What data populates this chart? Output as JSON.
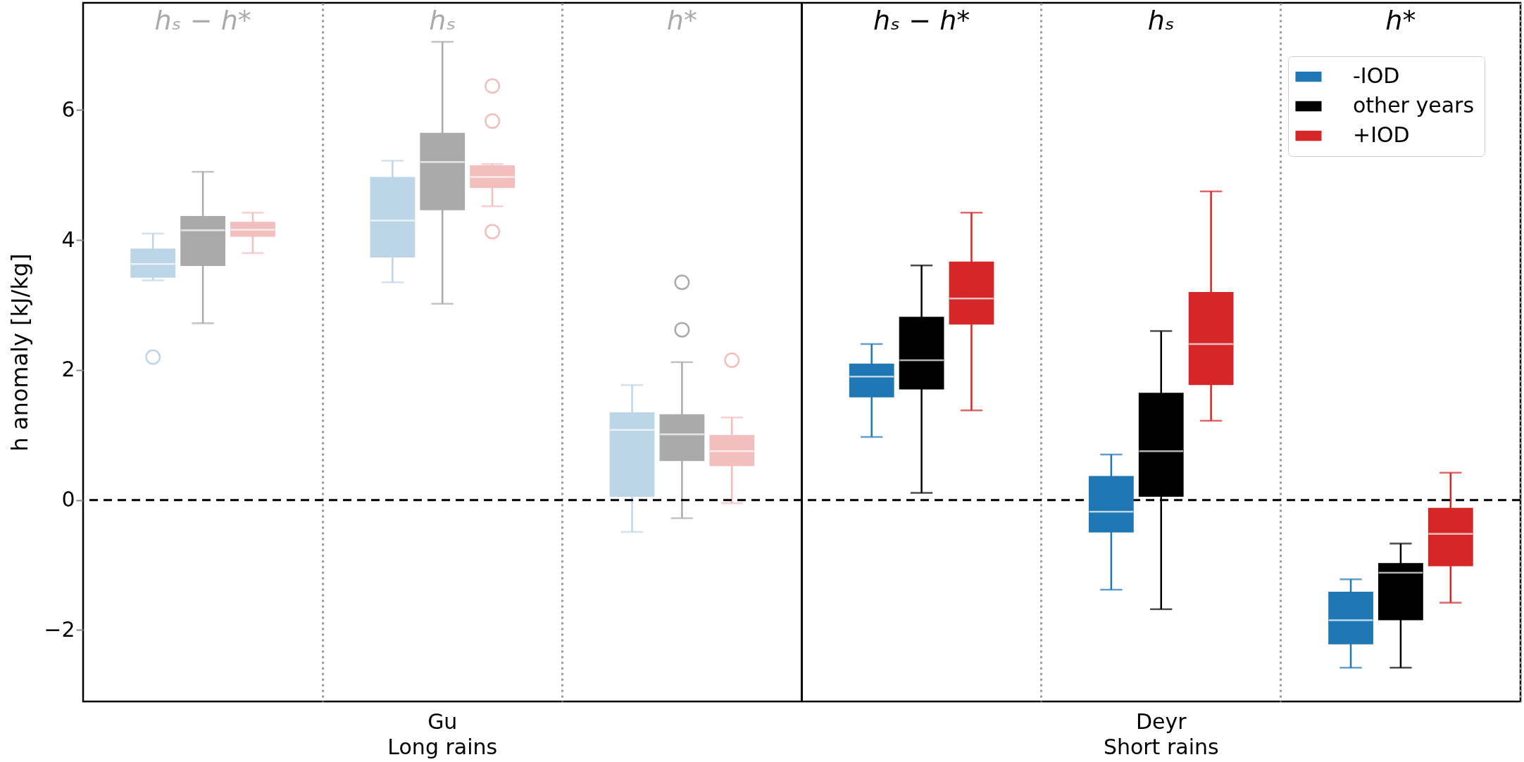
{
  "chart_data": {
    "type": "box",
    "ylabel": "h anomaly [kJ/kg]",
    "categories": [
      null,
      "Gu\nLong rains",
      null,
      null,
      "Deyr\nShort rains",
      null
    ],
    "ylim": [
      -3.1,
      7.65
    ],
    "yticks": [
      {
        "value": -2,
        "label": "−2"
      },
      0,
      2,
      4,
      6
    ],
    "grid": "x",
    "legend": "top right",
    "annotations": [
      "hₛ − h*",
      "hₛ",
      "h*",
      "hₛ − h*",
      "hₛ",
      "h*"
    ],
    "ref_lines": [
      {
        "axis": "y",
        "value": 0,
        "color": "#000000",
        "line_style": "dashed"
      }
    ],
    "series": [
      {
        "color": "#bcd6e8",
        "boxes": [
          {
            "low": 3.38,
            "q1": 3.42,
            "median": 3.63,
            "q3": 3.87,
            "high": 4.1,
            "outliers": [
              2.2
            ]
          },
          {
            "low": 3.35,
            "q1": 3.73,
            "median": 4.3,
            "q3": 4.97,
            "high": 5.22
          },
          {
            "low": -0.49,
            "q1": 0.05,
            "median": 1.08,
            "q3": 1.35,
            "high": 1.77
          },
          null,
          null,
          null
        ]
      },
      {
        "color": "#aaaaaa",
        "boxes": [
          {
            "low": 2.72,
            "q1": 3.6,
            "median": 4.15,
            "q3": 4.37,
            "high": 5.05
          },
          {
            "low": 3.02,
            "q1": 4.46,
            "median": 5.2,
            "q3": 5.65,
            "high": 7.05
          },
          {
            "low": -0.28,
            "q1": 0.6,
            "median": 1.01,
            "q3": 1.32,
            "high": 2.12,
            "outliers": [
              3.35,
              2.62
            ]
          },
          null,
          null,
          null
        ]
      },
      {
        "color": "#f3bebe",
        "boxes": [
          {
            "low": 3.8,
            "q1": 4.05,
            "median": 4.16,
            "q3": 4.28,
            "high": 4.42
          },
          {
            "low": 4.52,
            "q1": 4.8,
            "median": 4.97,
            "q3": 5.15,
            "high": 5.17,
            "outliers": [
              6.37,
              5.83,
              4.13
            ]
          },
          {
            "low": -0.05,
            "q1": 0.52,
            "median": 0.75,
            "q3": 1.0,
            "high": 1.27,
            "outliers": [
              2.15
            ]
          },
          null,
          null,
          null
        ]
      },
      {
        "name": "-IOD",
        "color": "#1f77b4",
        "boxes": [
          null,
          null,
          null,
          {
            "low": 0.97,
            "q1": 1.58,
            "median": 1.9,
            "q3": 2.1,
            "high": 2.4
          },
          {
            "low": -1.38,
            "q1": -0.5,
            "median": -0.18,
            "q3": 0.37,
            "high": 0.7
          },
          {
            "low": -2.58,
            "q1": -2.22,
            "median": -1.85,
            "q3": -1.41,
            "high": -1.22
          }
        ]
      },
      {
        "name": "other years",
        "color": "#000000",
        "boxes": [
          null,
          null,
          null,
          {
            "low": 0.11,
            "q1": 1.7,
            "median": 2.15,
            "q3": 2.82,
            "high": 3.61
          },
          {
            "low": -1.68,
            "q1": 0.05,
            "median": 0.75,
            "q3": 1.65,
            "high": 2.6
          },
          {
            "low": -2.58,
            "q1": -1.85,
            "median": -1.12,
            "q3": -0.97,
            "high": -0.67
          }
        ]
      },
      {
        "name": "+IOD",
        "color": "#d62728",
        "boxes": [
          null,
          null,
          null,
          {
            "low": 1.38,
            "q1": 2.7,
            "median": 3.1,
            "q3": 3.67,
            "high": 4.42
          },
          {
            "low": 1.22,
            "q1": 1.77,
            "median": 2.4,
            "q3": 3.2,
            "high": 4.75
          },
          {
            "low": -1.58,
            "q1": -1.02,
            "median": -0.52,
            "q3": -0.12,
            "high": 0.42
          }
        ]
      }
    ]
  }
}
